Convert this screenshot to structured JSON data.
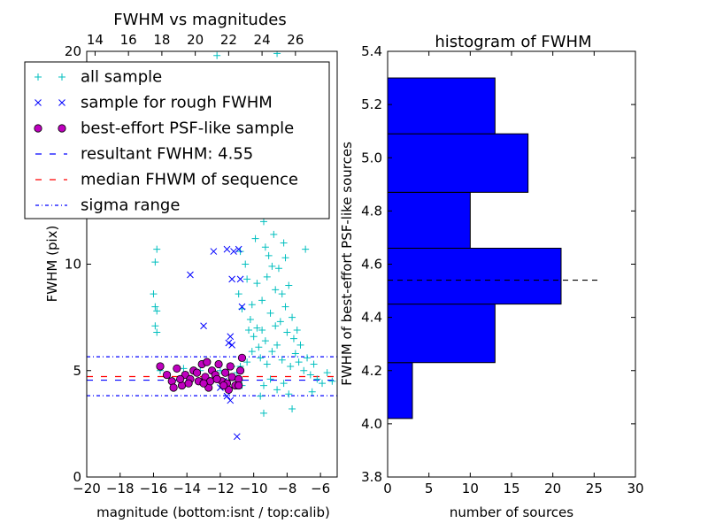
{
  "chart_data": [
    {
      "type": "scatter",
      "title": "FWHM vs magnitudes",
      "xlabel": "magnitude (bottom:isnt / top:calib)",
      "ylabel": "FWHM (pix)",
      "xlim": [
        -20,
        -5
      ],
      "ylim": [
        0,
        20
      ],
      "xticks": [
        -20,
        -18,
        -16,
        -14,
        -12,
        -10,
        -8,
        -6
      ],
      "xtick_labels": [
        "−20",
        "−18",
        "−16",
        "−14",
        "−12",
        "−10",
        "−8",
        "−6"
      ],
      "yticks": [
        0,
        5,
        10,
        15,
        20
      ],
      "ytick_labels": [
        "0",
        "5",
        "10",
        "15",
        "20"
      ],
      "top_xticks": [
        14,
        16,
        18,
        20,
        22,
        24,
        26
      ],
      "top_xtick_labels": [
        "14",
        "16",
        "18",
        "20",
        "22",
        "24",
        "26"
      ],
      "top_x_offset": 33.5,
      "legend_placement": "upper-left",
      "legend": [
        {
          "label": "all sample",
          "marker": "plus",
          "color": "#00bfbf"
        },
        {
          "label": "sample for rough FWHM",
          "marker": "x",
          "color": "#0000ff"
        },
        {
          "label": "best-effort PSF-like sample",
          "marker": "circle",
          "color": "#bf00bf"
        },
        {
          "label": "resultant FWHM: 4.55",
          "marker": "dash",
          "color": "#0000ff"
        },
        {
          "label": "median FHWM of sequence",
          "marker": "dash",
          "color": "#ff0000"
        },
        {
          "label": "sigma range",
          "marker": "dashdot",
          "color": "#0000ff"
        }
      ],
      "reference_lines": [
        {
          "name": "resultant FWHM",
          "y": 4.55,
          "style": "dash",
          "color": "#0000ff"
        },
        {
          "name": "median FHWM of sequence",
          "y": 4.72,
          "style": "dash",
          "color": "#ff0000"
        },
        {
          "name": "sigma range upper",
          "y": 5.65,
          "style": "dashdot",
          "color": "#0000ff"
        },
        {
          "name": "sigma range lower",
          "y": 3.82,
          "style": "dashdot",
          "color": "#0000ff"
        }
      ],
      "series": [
        {
          "name": "all sample",
          "marker": "plus",
          "color": "#00bfbf",
          "points": [
            [
              -15.8,
              10.7
            ],
            [
              -15.9,
              10.1
            ],
            [
              -16.0,
              8.6
            ],
            [
              -15.9,
              8.0
            ],
            [
              -15.8,
              7.8
            ],
            [
              -15.9,
              7.1
            ],
            [
              -15.8,
              6.8
            ],
            [
              -15.6,
              5.0
            ],
            [
              -14.2,
              5.1
            ],
            [
              -13.2,
              5.0
            ],
            [
              -12.0,
              5.0
            ],
            [
              -11.3,
              5.2
            ],
            [
              -11.0,
              4.9
            ],
            [
              -10.8,
              5.2
            ],
            [
              -10.7,
              4.3
            ],
            [
              -10.8,
              10.6
            ],
            [
              -10.9,
              8.6
            ],
            [
              -10.7,
              7.9
            ],
            [
              -10.5,
              10.0
            ],
            [
              -10.4,
              9.3
            ],
            [
              -10.3,
              6.9
            ],
            [
              -10.2,
              7.4
            ],
            [
              -10.1,
              8.1
            ],
            [
              -10.0,
              6.6
            ],
            [
              -9.9,
              11.2
            ],
            [
              -9.8,
              7.0
            ],
            [
              -9.7,
              6.1
            ],
            [
              -9.6,
              5.6
            ],
            [
              -9.5,
              8.3
            ],
            [
              -9.4,
              12.0
            ],
            [
              -9.3,
              6.4
            ],
            [
              -9.2,
              9.4
            ],
            [
              -9.1,
              10.4
            ],
            [
              -9.0,
              7.7
            ],
            [
              -8.9,
              5.9
            ],
            [
              -8.8,
              11.4
            ],
            [
              -8.7,
              8.8
            ],
            [
              -8.6,
              6.2
            ],
            [
              -8.5,
              9.8
            ],
            [
              -8.4,
              7.3
            ],
            [
              -8.3,
              5.5
            ],
            [
              -8.2,
              11.0
            ],
            [
              -8.1,
              8.0
            ],
            [
              -8.0,
              6.8
            ],
            [
              -7.9,
              9.0
            ],
            [
              -7.8,
              5.2
            ],
            [
              -7.7,
              7.5
            ],
            [
              -7.6,
              6.5
            ],
            [
              -7.5,
              5.8
            ],
            [
              -7.4,
              6.9
            ],
            [
              -7.3,
              5.4
            ],
            [
              -7.2,
              6.2
            ],
            [
              -7.0,
              5.0
            ],
            [
              -6.8,
              5.6
            ],
            [
              -6.6,
              4.8
            ],
            [
              -6.4,
              5.3
            ],
            [
              -6.2,
              4.6
            ],
            [
              -5.9,
              4.4
            ],
            [
              -5.6,
              4.9
            ],
            [
              -5.3,
              4.5
            ],
            [
              -9.4,
              4.3
            ],
            [
              -9.0,
              4.6
            ],
            [
              -8.6,
              4.1
            ],
            [
              -8.2,
              4.4
            ],
            [
              -7.9,
              3.9
            ],
            [
              -9.6,
              3.8
            ],
            [
              -9.4,
              3.0
            ],
            [
              -7.7,
              3.2
            ],
            [
              -8.8,
              12.8
            ],
            [
              -8.5,
              13.2
            ],
            [
              -9.1,
              13.5
            ],
            [
              -8.0,
              12.4
            ],
            [
              -9.3,
              10.8
            ],
            [
              -8.9,
              9.9
            ],
            [
              -8.3,
              8.6
            ],
            [
              -9.8,
              9.1
            ],
            [
              -8.1,
              10.3
            ],
            [
              -9.5,
              6.9
            ],
            [
              -8.7,
              7.1
            ],
            [
              -9.2,
              5.3
            ],
            [
              -10.1,
              5.9
            ],
            [
              -10.4,
              5.4
            ],
            [
              -6.9,
              10.7
            ],
            [
              -6.5,
              4.0
            ],
            [
              -12.2,
              19.8
            ],
            [
              -8.6,
              19.9
            ]
          ]
        },
        {
          "name": "sample for rough FWHM",
          "marker": "x",
          "color": "#0000ff",
          "points": [
            [
              -12.4,
              10.6
            ],
            [
              -11.6,
              10.7
            ],
            [
              -11.2,
              10.6
            ],
            [
              -10.9,
              10.7
            ],
            [
              -13.8,
              9.5
            ],
            [
              -11.3,
              9.3
            ],
            [
              -10.8,
              9.3
            ],
            [
              -10.7,
              8.0
            ],
            [
              -13.0,
              7.1
            ],
            [
              -11.4,
              6.6
            ],
            [
              -11.3,
              6.2
            ],
            [
              -11.5,
              6.3
            ],
            [
              -11.6,
              3.8
            ],
            [
              -11.4,
              3.6
            ],
            [
              -11.0,
              1.9
            ],
            [
              -12.0,
              4.2
            ],
            [
              -11.8,
              4.5
            ]
          ]
        },
        {
          "name": "best-effort PSF-like sample",
          "marker": "circle",
          "color": "#bf00bf",
          "points": [
            [
              -15.6,
              5.2
            ],
            [
              -15.2,
              4.8
            ],
            [
              -14.9,
              4.5
            ],
            [
              -14.6,
              5.1
            ],
            [
              -14.3,
              4.3
            ],
            [
              -14.1,
              4.8
            ],
            [
              -13.8,
              4.6
            ],
            [
              -13.6,
              5.0
            ],
            [
              -13.3,
              4.5
            ],
            [
              -13.1,
              5.3
            ],
            [
              -12.9,
              4.7
            ],
            [
              -12.7,
              4.2
            ],
            [
              -12.5,
              5.0
            ],
            [
              -12.3,
              4.8
            ],
            [
              -12.1,
              5.3
            ],
            [
              -11.9,
              4.5
            ],
            [
              -11.7,
              4.9
            ],
            [
              -11.6,
              4.4
            ],
            [
              -11.4,
              5.2
            ],
            [
              -11.3,
              4.7
            ],
            [
              -11.1,
              4.3
            ],
            [
              -10.9,
              4.6
            ],
            [
              -10.8,
              5.0
            ],
            [
              -10.7,
              5.6
            ],
            [
              -14.8,
              4.2
            ],
            [
              -13.9,
              4.4
            ],
            [
              -12.6,
              4.5
            ],
            [
              -11.5,
              4.1
            ],
            [
              -12.2,
              4.6
            ],
            [
              -13.4,
              4.9
            ],
            [
              -14.4,
              4.6
            ],
            [
              -12.8,
              5.4
            ],
            [
              -11.8,
              4.3
            ],
            [
              -10.9,
              4.3
            ],
            [
              -13.0,
              4.4
            ]
          ]
        }
      ]
    },
    {
      "type": "bar",
      "orientation": "horizontal",
      "title": "histogram of FWHM",
      "xlabel": "number of sources",
      "ylabel": "FWHM of best-effort PSF-like sources",
      "xlim": [
        0,
        30
      ],
      "ylim": [
        3.8,
        5.4
      ],
      "xticks": [
        0,
        5,
        10,
        15,
        20,
        25,
        30
      ],
      "xtick_labels": [
        "0",
        "5",
        "10",
        "15",
        "20",
        "25",
        "30"
      ],
      "yticks": [
        3.8,
        4.0,
        4.2,
        4.4,
        4.6,
        4.8,
        5.0,
        5.2,
        5.4
      ],
      "ytick_labels": [
        "3.8",
        "4.0",
        "4.2",
        "4.4",
        "4.6",
        "4.8",
        "5.0",
        "5.2",
        "5.4"
      ],
      "bar_color": "#0000ff",
      "bins": [
        {
          "from": 4.02,
          "to": 4.23,
          "count": 3
        },
        {
          "from": 4.23,
          "to": 4.45,
          "count": 13
        },
        {
          "from": 4.45,
          "to": 4.66,
          "count": 21
        },
        {
          "from": 4.66,
          "to": 4.87,
          "count": 10
        },
        {
          "from": 4.87,
          "to": 5.09,
          "count": 17
        },
        {
          "from": 5.09,
          "to": 5.3,
          "count": 13
        }
      ],
      "reference_line": {
        "y": 4.54,
        "x_to": 25.5,
        "style": "dash",
        "color": "#000000"
      }
    }
  ]
}
